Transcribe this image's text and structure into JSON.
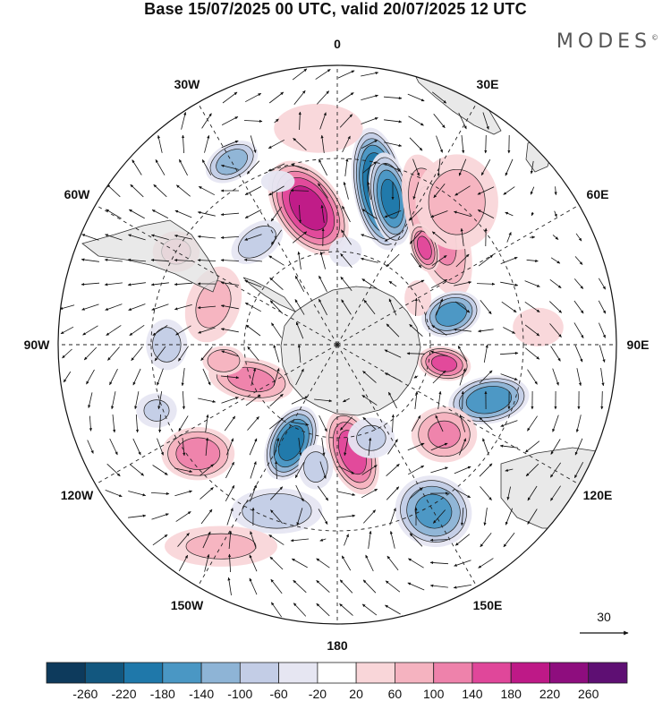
{
  "title": "Base 15/07/2025 00 UTC, valid 20/07/2025 12 UTC",
  "brand": "MODES",
  "brand_mark": "©",
  "meridian_labels": [
    "0",
    "30E",
    "60E",
    "90E",
    "120E",
    "150E",
    "180",
    "150W",
    "120W",
    "90W",
    "60W",
    "30W"
  ],
  "vector_reference": "30",
  "colorbar": {
    "ticks": [
      "-260",
      "-220",
      "-180",
      "-140",
      "-100",
      "-60",
      "-20",
      "20",
      "60",
      "100",
      "140",
      "180",
      "220",
      "260"
    ],
    "colors": [
      "#0d3a5c",
      "#12577f",
      "#1f78aa",
      "#4a97c4",
      "#8eb4d6",
      "#c3cde6",
      "#e6e6f2",
      "#ffffff",
      "#f9d6d9",
      "#f5b3c0",
      "#ee82ab",
      "#e0479a",
      "#be1987",
      "#8e0d7e",
      "#5e0f73"
    ]
  },
  "anomalies": [
    {
      "lon": 15,
      "lat": -38,
      "rx": 30,
      "ry": 72,
      "rot": -10,
      "val": -240
    },
    {
      "lon": 20,
      "lat": -40,
      "rx": 24,
      "ry": 55,
      "rot": -10,
      "val": -190
    },
    {
      "lon": -12,
      "lat": -45,
      "rx": 38,
      "ry": 62,
      "rot": -35,
      "val": 200
    },
    {
      "lon": 40,
      "lat": -40,
      "rx": 34,
      "ry": 90,
      "rot": -18,
      "val": 110
    },
    {
      "lon": 42,
      "lat": -48,
      "rx": 16,
      "ry": 30,
      "rot": -18,
      "val": 150
    },
    {
      "lon": 40,
      "lat": -30,
      "rx": 52,
      "ry": 60,
      "rot": 0,
      "val": 70
    },
    {
      "lon": 75,
      "lat": -52,
      "rx": 36,
      "ry": 26,
      "rot": -20,
      "val": -160
    },
    {
      "lon": 100,
      "lat": -55,
      "rx": 32,
      "ry": 20,
      "rot": 10,
      "val": 150
    },
    {
      "lon": 110,
      "lat": -38,
      "rx": 48,
      "ry": 28,
      "rot": -10,
      "val": -170
    },
    {
      "lon": 130,
      "lat": -45,
      "rx": 40,
      "ry": 34,
      "rot": 0,
      "val": 100
    },
    {
      "lon": 150,
      "lat": -28,
      "rx": 46,
      "ry": 42,
      "rot": 20,
      "val": -150
    },
    {
      "lon": 172,
      "lat": -55,
      "rx": 28,
      "ry": 52,
      "rot": -20,
      "val": 160
    },
    {
      "lon": -155,
      "lat": -55,
      "rx": 28,
      "ry": 46,
      "rot": 25,
      "val": -200
    },
    {
      "lon": -112,
      "lat": -60,
      "rx": 52,
      "ry": 26,
      "rot": 10,
      "val": 110
    },
    {
      "lon": -128,
      "lat": -33,
      "rx": 44,
      "ry": 32,
      "rot": 0,
      "val": 120
    },
    {
      "lon": -160,
      "lat": -33,
      "rx": 56,
      "ry": 28,
      "rot": 0,
      "val": -90
    },
    {
      "lon": -98,
      "lat": -53,
      "rx": 26,
      "ry": 18,
      "rot": 0,
      "val": 90
    },
    {
      "lon": -90,
      "lat": -35,
      "rx": 26,
      "ry": 32,
      "rot": 0,
      "val": -70
    },
    {
      "lon": -110,
      "lat": -28,
      "rx": 26,
      "ry": 22,
      "rot": 0,
      "val": -60
    },
    {
      "lon": -72,
      "lat": -48,
      "rx": 34,
      "ry": 50,
      "rot": 20,
      "val": 60
    },
    {
      "lon": -38,
      "lat": -48,
      "rx": 36,
      "ry": 22,
      "rot": -35,
      "val": -80
    },
    {
      "lon": -30,
      "lat": -22,
      "rx": 34,
      "ry": 22,
      "rot": -30,
      "val": -120
    },
    {
      "lon": -5,
      "lat": -20,
      "rx": 58,
      "ry": 32,
      "rot": 0,
      "val": 50
    },
    {
      "lon": -60,
      "lat": -30,
      "rx": 30,
      "ry": 26,
      "rot": 0,
      "val": 60
    },
    {
      "lon": 5,
      "lat": -60,
      "rx": 22,
      "ry": 20,
      "rot": 0,
      "val": -40
    },
    {
      "lon": 60,
      "lat": -60,
      "rx": 18,
      "ry": 24,
      "rot": 0,
      "val": 40
    },
    {
      "lon": -150,
      "lat": -15,
      "rx": 72,
      "ry": 26,
      "rot": 0,
      "val": 60
    },
    {
      "lon": -20,
      "lat": -34,
      "rx": 22,
      "ry": 14,
      "rot": 0,
      "val": -50
    },
    {
      "lon": 85,
      "lat": -25,
      "rx": 34,
      "ry": 26,
      "rot": 0,
      "val": 40
    },
    {
      "lon": 160,
      "lat": -58,
      "rx": 30,
      "ry": 26,
      "rot": 0,
      "val": -60
    },
    {
      "lon": -170,
      "lat": -50,
      "rx": 22,
      "ry": 28,
      "rot": 0,
      "val": -70
    }
  ]
}
